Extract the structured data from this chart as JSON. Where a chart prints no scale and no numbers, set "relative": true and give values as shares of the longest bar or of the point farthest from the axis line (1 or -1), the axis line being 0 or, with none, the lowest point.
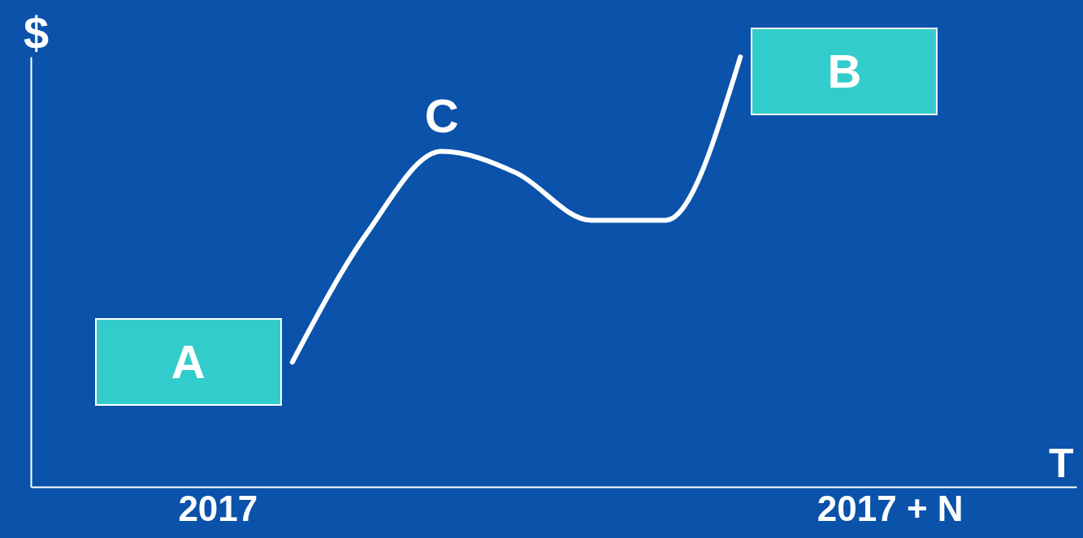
{
  "chart_data": {
    "type": "line",
    "relative": true,
    "xlabel": "T",
    "ylabel": "$",
    "categories": [
      "2017",
      null,
      null,
      null,
      null,
      null,
      null,
      null,
      null,
      "2017 + N"
    ],
    "series": [
      {
        "color": "#ffffff",
        "values": [
          null,
          0.29,
          0.59,
          0.78,
          0.73,
          0.62,
          0.62,
          1.0,
          null,
          null
        ]
      }
    ],
    "annotations": [
      "A",
      "B",
      "C"
    ],
    "grid": false,
    "marker": "none",
    "line_style": "solid"
  }
}
